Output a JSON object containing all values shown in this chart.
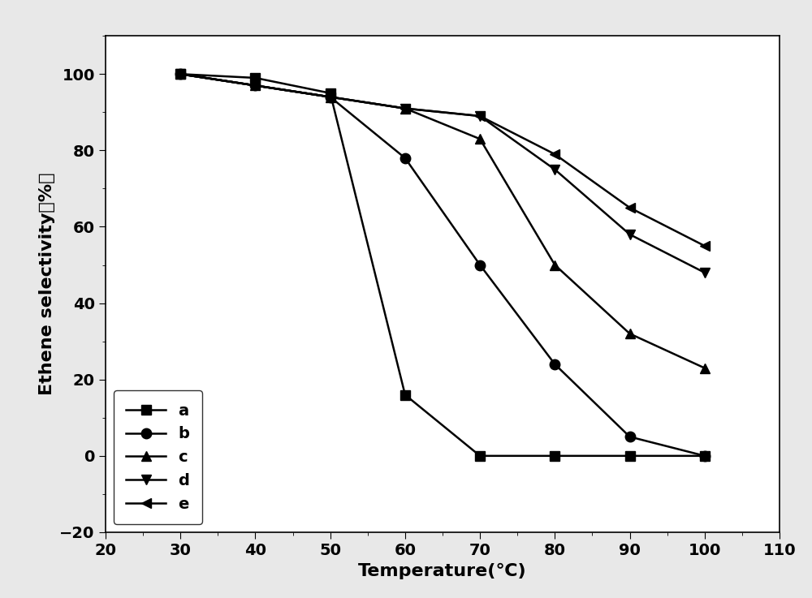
{
  "title": "",
  "xlabel": "Temperature(℃)",
  "ylabel": "Ethene selectivity（%）",
  "xlim": [
    20,
    110
  ],
  "ylim": [
    -20,
    110
  ],
  "xticks": [
    20,
    30,
    40,
    50,
    60,
    70,
    80,
    90,
    100,
    110
  ],
  "yticks": [
    -20,
    0,
    20,
    40,
    60,
    80,
    100
  ],
  "series": [
    {
      "label": "a",
      "marker": "s",
      "x": [
        30,
        40,
        50,
        60,
        70,
        80,
        90,
        100
      ],
      "y": [
        100,
        99,
        95,
        16,
        0,
        0,
        0,
        0
      ]
    },
    {
      "label": "b",
      "marker": "o",
      "x": [
        30,
        40,
        50,
        60,
        70,
        80,
        90,
        100
      ],
      "y": [
        100,
        97,
        94,
        78,
        50,
        24,
        5,
        0
      ]
    },
    {
      "label": "c",
      "marker": "^",
      "x": [
        30,
        40,
        50,
        60,
        70,
        80,
        90,
        100
      ],
      "y": [
        100,
        97,
        94,
        91,
        83,
        50,
        32,
        23
      ]
    },
    {
      "label": "d",
      "marker": "v",
      "x": [
        30,
        40,
        50,
        60,
        70,
        80,
        90,
        100
      ],
      "y": [
        100,
        97,
        94,
        91,
        89,
        75,
        58,
        48
      ]
    },
    {
      "label": "e",
      "marker": "<",
      "x": [
        30,
        40,
        50,
        60,
        70,
        80,
        90,
        100
      ],
      "y": [
        100,
        97,
        94,
        91,
        89,
        79,
        65,
        55
      ]
    }
  ],
  "line_color": "#000000",
  "marker_size": 9,
  "line_width": 1.8,
  "legend_loc": "lower left",
  "legend_fontsize": 14,
  "axis_label_fontsize": 16,
  "tick_fontsize": 14,
  "background_color": "#ffffff",
  "outer_background": "#e8e8e8"
}
